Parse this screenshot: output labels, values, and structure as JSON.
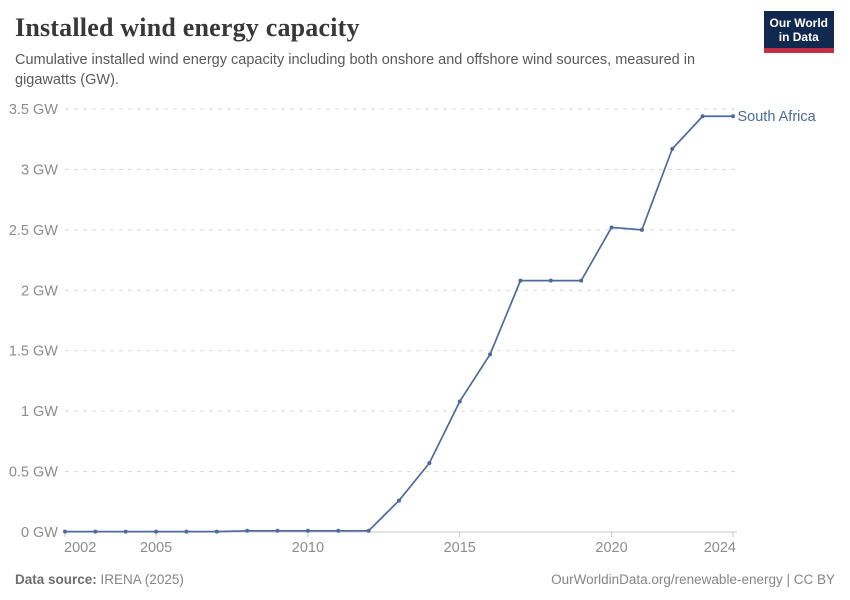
{
  "header": {
    "title": "Installed wind energy capacity",
    "subtitle": "Cumulative installed wind energy capacity including both onshore and offshore wind sources, measured in gigawatts (GW)."
  },
  "logo": {
    "line1": "Our World",
    "line2": "in Data"
  },
  "footer": {
    "source_label": "Data source:",
    "source_value": "IRENA (2025)",
    "credit": "OurWorldinData.org/renewable-energy | CC BY"
  },
  "colors": {
    "series": "#4c6a9c",
    "grid": "#dadada",
    "axis": "#c6c6c6",
    "tick_text": "#8c8c8c",
    "logo_bg": "#12294f",
    "logo_red": "#c32f44"
  },
  "chart_data": {
    "type": "line",
    "title": "Installed wind energy capacity",
    "ylabel": "",
    "xlabel": "",
    "grid": "horizontal-dashed",
    "legend_position": "end-of-line-label",
    "end_label": "South Africa",
    "xlim": [
      2002,
      2024
    ],
    "ylim": [
      0,
      3.5
    ],
    "x": [
      2002,
      2003,
      2004,
      2005,
      2006,
      2007,
      2008,
      2009,
      2010,
      2011,
      2012,
      2013,
      2014,
      2015,
      2016,
      2017,
      2018,
      2019,
      2020,
      2021,
      2022,
      2023,
      2024
    ],
    "series": [
      {
        "name": "South Africa",
        "color": "#4c6a9c",
        "values": [
          0.003,
          0.003,
          0.003,
          0.003,
          0.003,
          0.003,
          0.01,
          0.01,
          0.01,
          0.01,
          0.01,
          0.26,
          0.57,
          1.08,
          1.47,
          2.08,
          2.08,
          2.08,
          2.52,
          2.5,
          3.17,
          3.44,
          3.44
        ]
      }
    ],
    "yticks": [
      {
        "value": 0,
        "label": "0 GW"
      },
      {
        "value": 0.5,
        "label": "0.5 GW"
      },
      {
        "value": 1,
        "label": "1 GW"
      },
      {
        "value": 1.5,
        "label": "1.5 GW"
      },
      {
        "value": 2,
        "label": "2 GW"
      },
      {
        "value": 2.5,
        "label": "2.5 GW"
      },
      {
        "value": 3,
        "label": "3 GW"
      },
      {
        "value": 3.5,
        "label": "3.5 GW"
      }
    ],
    "xticks": [
      {
        "value": 2002,
        "label": "2002"
      },
      {
        "value": 2005,
        "label": "2005"
      },
      {
        "value": 2010,
        "label": "2010"
      },
      {
        "value": 2015,
        "label": "2015"
      },
      {
        "value": 2020,
        "label": "2020"
      },
      {
        "value": 2024,
        "label": "2024"
      }
    ]
  }
}
